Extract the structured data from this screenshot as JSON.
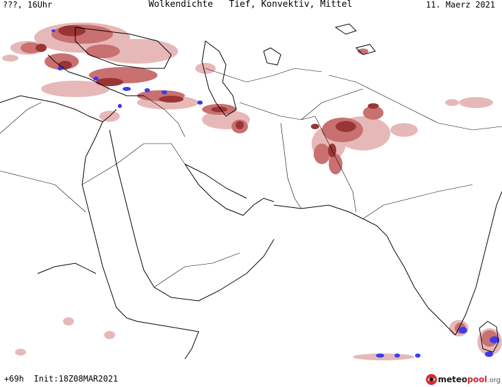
{
  "header": {
    "left": "???, 16Uhr",
    "title": "Wolkendichte   Tief, Konvektiv, Mittel",
    "date": "11. Maerz 2021"
  },
  "footer": {
    "run_info": "+69h  Init:18Z08MAR2021",
    "logo_part1": "meteo",
    "logo_part2": "pool",
    "logo_part3": ".org"
  },
  "colors": {
    "cloud_light": "#e7b8b8",
    "cloud_medium": "#c97070",
    "cloud_dark": "#9a3535",
    "convective": "#3b3bf0",
    "coastline": "#000000",
    "border": "#000000",
    "background": "#ffffff"
  }
}
